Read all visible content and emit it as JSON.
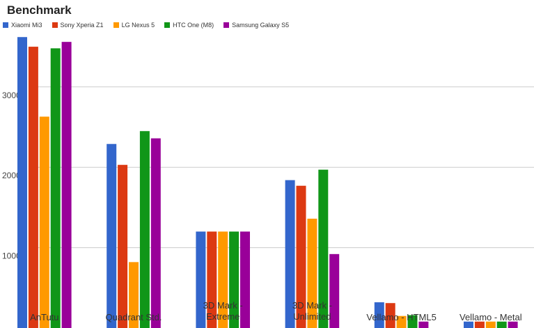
{
  "chart_data": {
    "type": "bar",
    "title": "Benchmark",
    "categories": [
      "AnTutu",
      "Quadrant Std.",
      "3D Mark - Extreme",
      "3D Mark - Unlimited",
      "Vellamo - HTML5",
      "Vellamo - Metal"
    ],
    "series": [
      {
        "name": "Xiaomi Mi3",
        "color": "#3366cc",
        "values": [
          36200,
          22900,
          12000,
          18400,
          3200,
          800
        ]
      },
      {
        "name": "Sony Xperia Z1",
        "color": "#dc3912",
        "values": [
          35000,
          20300,
          12000,
          17700,
          3100,
          800
        ]
      },
      {
        "name": "LG Nexus 5",
        "color": "#ff9900",
        "values": [
          26300,
          8200,
          12000,
          13600,
          1500,
          800
        ]
      },
      {
        "name": "HTC One (M8)",
        "color": "#109618",
        "values": [
          34800,
          24500,
          12000,
          19700,
          1600,
          800
        ]
      },
      {
        "name": "Samsung Galaxy S5",
        "color": "#990099",
        "values": [
          35600,
          23600,
          12000,
          9200,
          800,
          800
        ]
      }
    ],
    "ylim": [
      0,
      37000
    ],
    "yticks": [
      10000,
      20000,
      30000
    ],
    "grid": true,
    "legend": "top-left"
  }
}
